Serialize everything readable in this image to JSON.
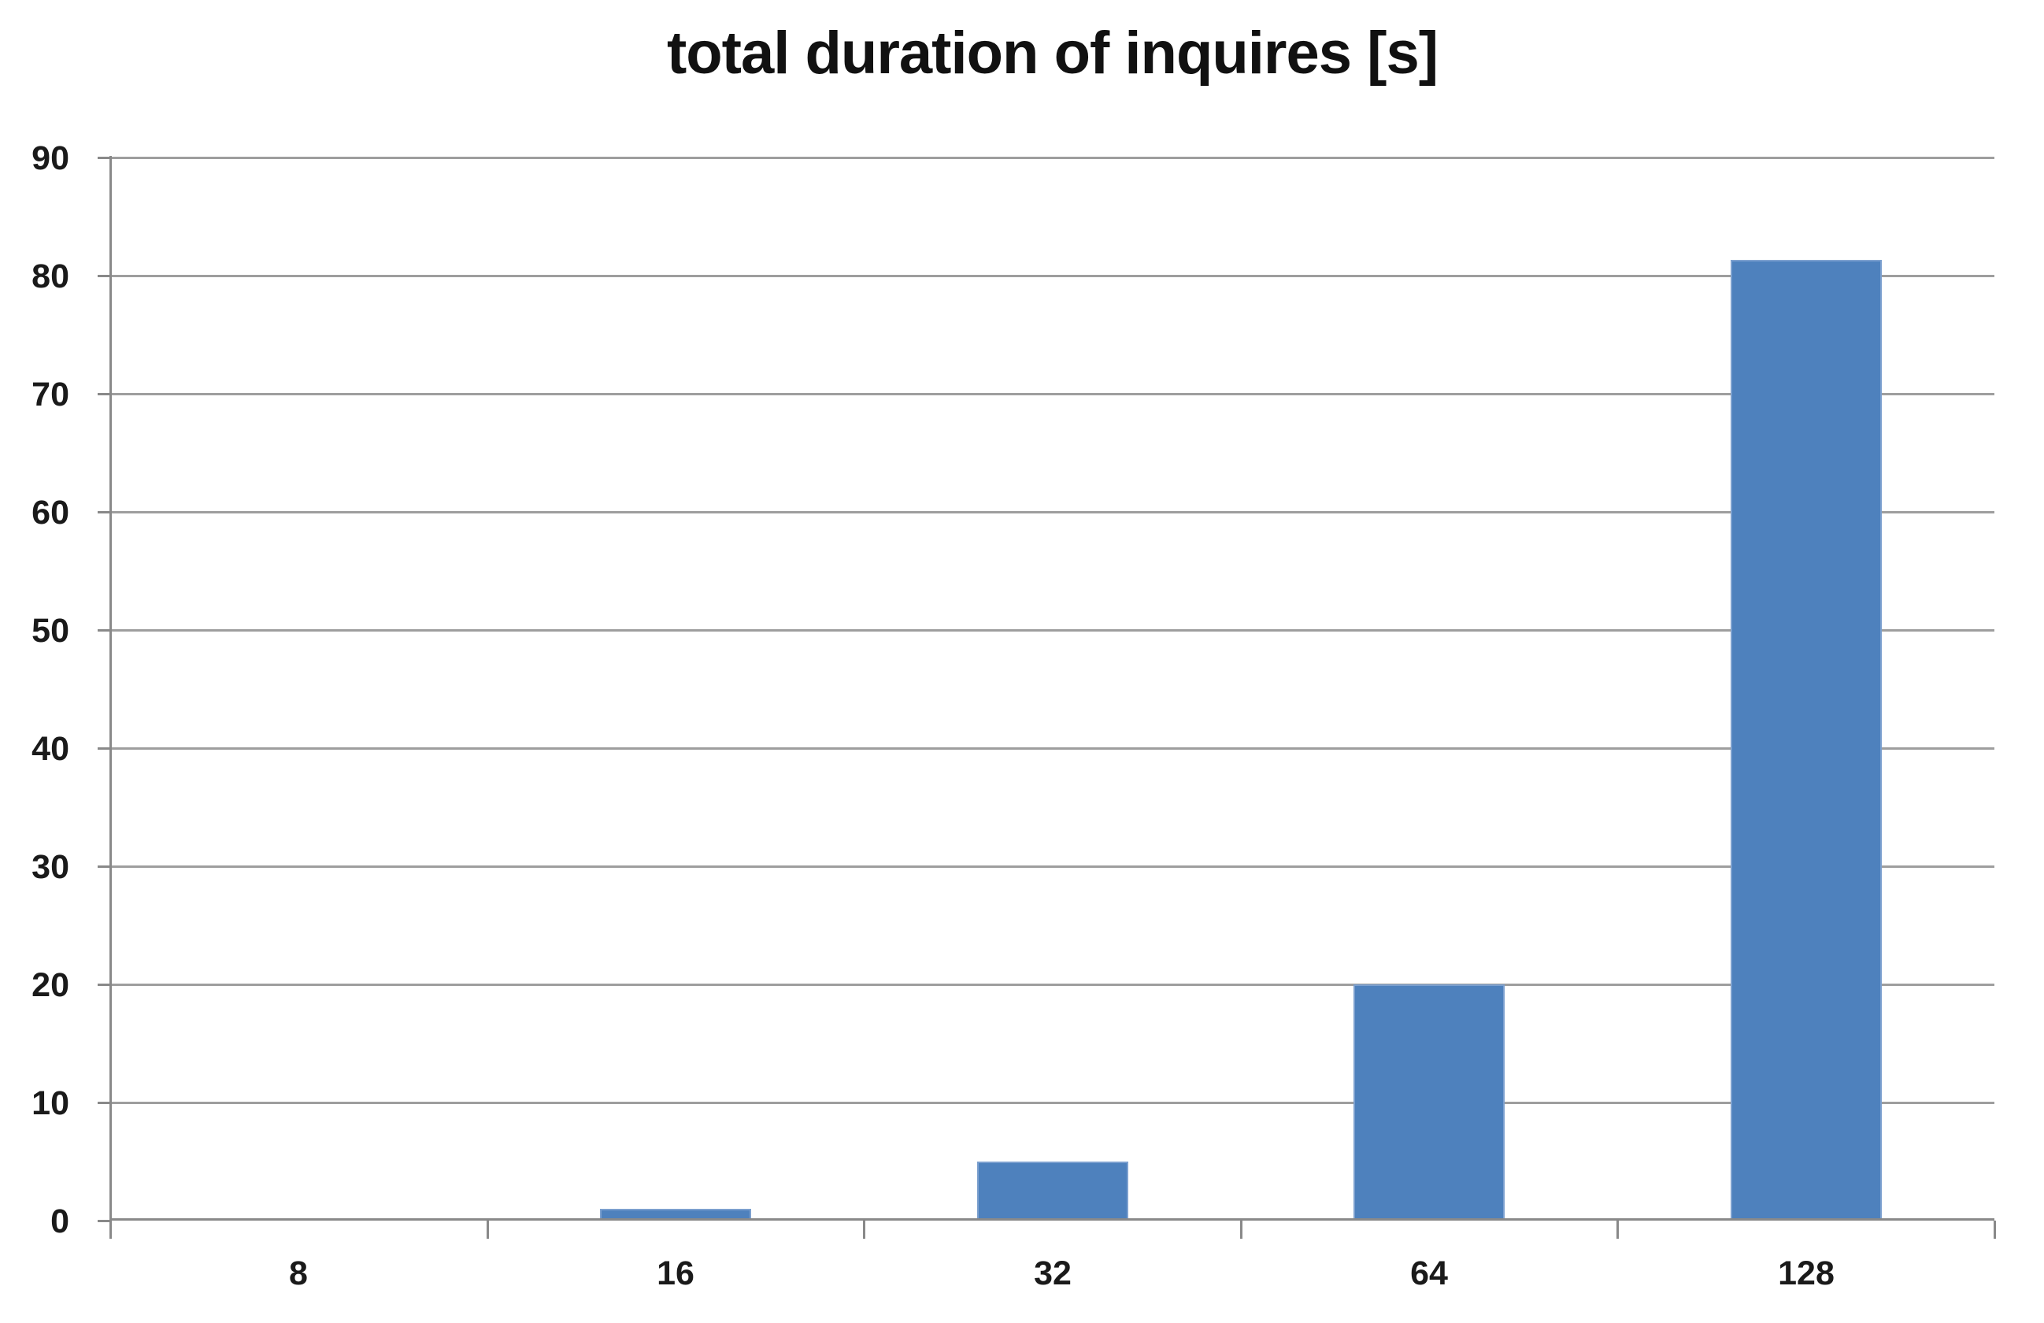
{
  "chart_data": {
    "type": "bar",
    "title": "total duration of inquires [s]",
    "categories": [
      "8",
      "16",
      "32",
      "64",
      "128"
    ],
    "values": [
      0,
      1,
      5,
      20,
      81.3
    ],
    "xlabel": "",
    "ylabel": "",
    "ylim": [
      0,
      90
    ],
    "ytick_step": 10,
    "ytick_labels": [
      "0",
      "10",
      "20",
      "30",
      "40",
      "50",
      "60",
      "70",
      "80",
      "90"
    ],
    "grid": "horizontal",
    "legend": "none",
    "colors": {
      "bar_fill": "#4E81BD",
      "bar_edge": "#7CA0CF",
      "gridline": "#9E9E9E",
      "axis": "#898989",
      "text": "#1A1A1A",
      "background": "#FFFFFF"
    }
  }
}
